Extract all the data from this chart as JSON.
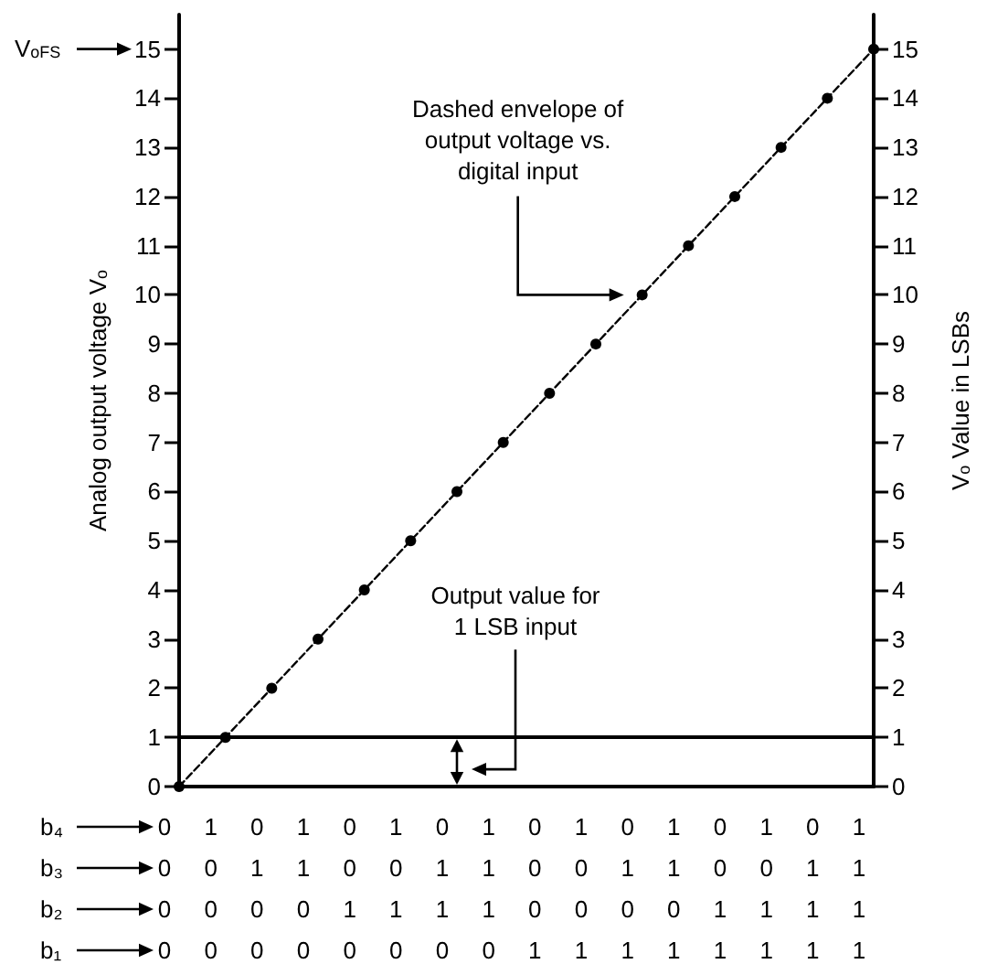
{
  "chart_data": {
    "type": "line",
    "ylabel": "Analog output voltage V$_{o}$",
    "y2label": "V$_{o}$ Value in LSBs",
    "categories": [
      null,
      null,
      null,
      null,
      null,
      null,
      null,
      null,
      null,
      null,
      null,
      null,
      null,
      null,
      null,
      null
    ],
    "series": [
      {
        "color": "#000000",
        "values": [
          0,
          1,
          2,
          3,
          4,
          5,
          6,
          7,
          8,
          9,
          10,
          11,
          12,
          13,
          14,
          15
        ]
      }
    ],
    "ylim": [
      0,
      15.7
    ],
    "yticks": [
      0,
      1,
      2,
      3,
      4,
      5,
      6,
      7,
      8,
      9,
      10,
      11,
      12,
      13,
      14,
      15
    ],
    "y2lim": [
      0,
      15.7
    ],
    "y2ticks": [
      0,
      1,
      2,
      3,
      4,
      5,
      6,
      7,
      8,
      9,
      10,
      11,
      12,
      13,
      14,
      15
    ],
    "marker": "circle",
    "line_style": "dashed",
    "grid": false,
    "ref_lines": [
      {
        "axis": "y",
        "value": 1,
        "color": "#000000",
        "line_style": "solid"
      }
    ],
    "annotations": [
      "Dashed envelope of\noutput voltage vs.\ndigital input",
      "Output value for\n1 LSB input",
      "V$_{oFS}$",
      "b₄ 0 1 0 1 0 1 0 1 0 1 0 1 0 1 0 1",
      "b₃ 0 0 1 1 0 0 1 1 0 0 1 1 0 0 1 1",
      "b₂ 0 0 0 0 1 1 1 1 0 0 0 0 1 1 1 1",
      "b₁ 0 0 0 0 0 0 0 0 1 1 1 1 1 1 1 1"
    ]
  }
}
